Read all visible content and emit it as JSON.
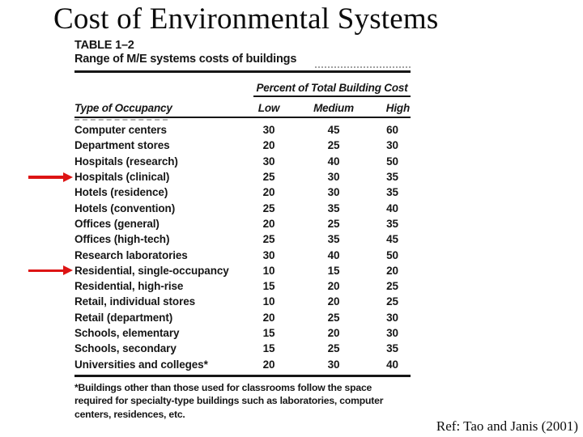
{
  "slide": {
    "title": "Cost of Environmental Systems",
    "reference": "Ref: Tao and Janis (2001)"
  },
  "table": {
    "label": "TABLE 1–2",
    "caption": "Range of M/E systems costs of buildings",
    "span_header": "Percent of Total Building Cost",
    "columns": [
      "Type of Occupancy",
      "Low",
      "Medium",
      "High"
    ],
    "rows": [
      {
        "occupancy": "Computer centers",
        "low": "30",
        "medium": "45",
        "high": "60",
        "arrow": false
      },
      {
        "occupancy": "Department stores",
        "low": "20",
        "medium": "25",
        "high": "30",
        "arrow": false
      },
      {
        "occupancy": "Hospitals (research)",
        "low": "30",
        "medium": "40",
        "high": "50",
        "arrow": false
      },
      {
        "occupancy": "Hospitals (clinical)",
        "low": "25",
        "medium": "30",
        "high": "35",
        "arrow": true
      },
      {
        "occupancy": "Hotels (residence)",
        "low": "20",
        "medium": "30",
        "high": "35",
        "arrow": false
      },
      {
        "occupancy": "Hotels (convention)",
        "low": "25",
        "medium": "35",
        "high": "40",
        "arrow": false
      },
      {
        "occupancy": "Offices (general)",
        "low": "20",
        "medium": "25",
        "high": "35",
        "arrow": false
      },
      {
        "occupancy": "Offices (high-tech)",
        "low": "25",
        "medium": "35",
        "high": "45",
        "arrow": false
      },
      {
        "occupancy": "Research laboratories",
        "low": "30",
        "medium": "40",
        "high": "50",
        "arrow": false
      },
      {
        "occupancy": "Residential, single-occupancy",
        "low": "10",
        "medium": "15",
        "high": "20",
        "arrow": true
      },
      {
        "occupancy": "Residential, high-rise",
        "low": "15",
        "medium": "20",
        "high": "25",
        "arrow": false
      },
      {
        "occupancy": "Retail, individual stores",
        "low": "10",
        "medium": "20",
        "high": "25",
        "arrow": false
      },
      {
        "occupancy": "Retail (department)",
        "low": "20",
        "medium": "25",
        "high": "30",
        "arrow": false
      },
      {
        "occupancy": "Schools, elementary",
        "low": "15",
        "medium": "20",
        "high": "30",
        "arrow": false
      },
      {
        "occupancy": "Schools, secondary",
        "low": "15",
        "medium": "25",
        "high": "35",
        "arrow": false
      },
      {
        "occupancy": "Universities and colleges*",
        "low": "20",
        "medium": "30",
        "high": "40",
        "arrow": false
      }
    ],
    "footnote": "*Buildings other than those used for classrooms follow the space required for specialty-type buildings such as laboratories, computer centers, residences, etc."
  },
  "colors": {
    "ink": "#161616",
    "arrow_red": "#dd1414"
  }
}
